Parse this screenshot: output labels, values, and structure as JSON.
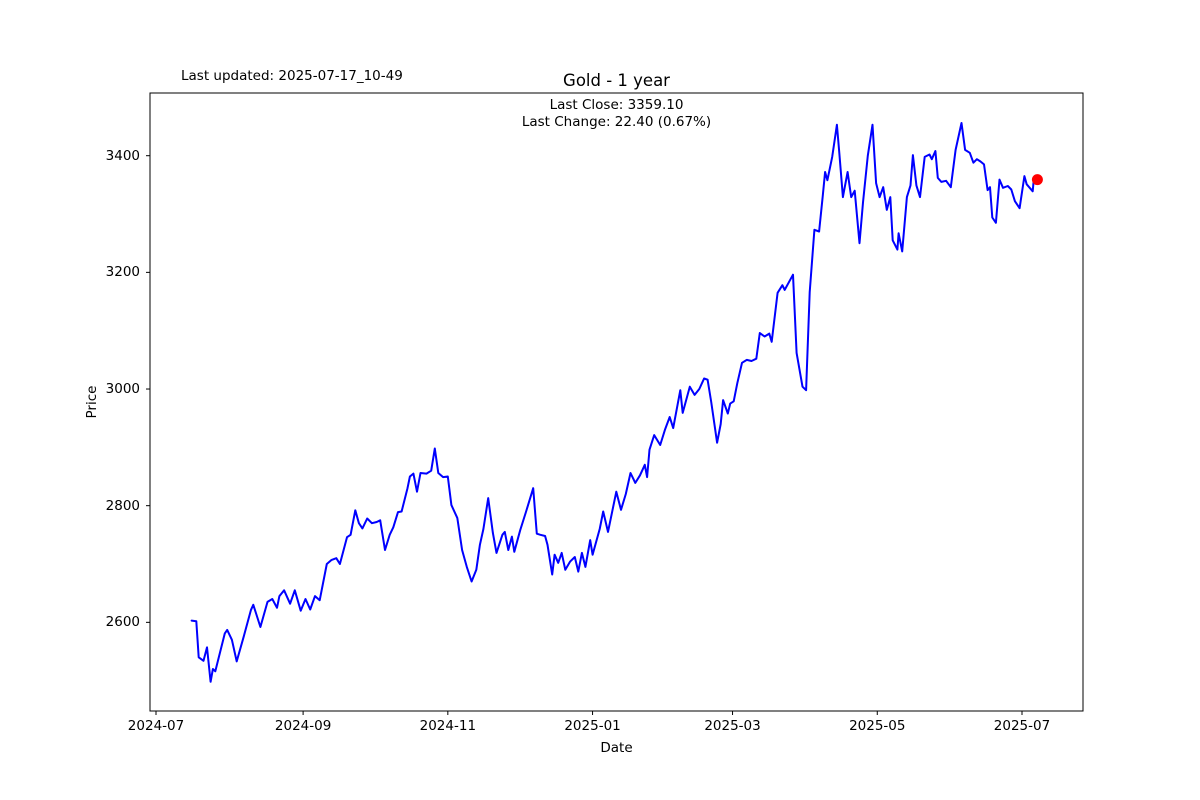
{
  "figure": {
    "last_updated": "Last updated: 2025-07-17_10-49"
  },
  "chart_data": {
    "type": "line",
    "title": "Gold - 1 year",
    "xlabel": "Date",
    "ylabel": "Price",
    "annotations": [
      "Last Close: 3359.10",
      "Last Change: 22.40 (0.67%)"
    ],
    "last_close": 3359.1,
    "last_change": 22.4,
    "last_change_pct": "0.67%",
    "line_color": "#0000ff",
    "last_point_color": "#ff0000",
    "axis_color": "#000000",
    "grid": false,
    "legend": "none",
    "y_ticks": [
      2600,
      2800,
      3000,
      3200,
      3400
    ],
    "ylim": [
      2448,
      3508
    ],
    "x_ticks": [
      {
        "label": "2024-07",
        "day": 0
      },
      {
        "label": "2024-09",
        "day": 62
      },
      {
        "label": "2024-11",
        "day": 123
      },
      {
        "label": "2025-01",
        "day": 184
      },
      {
        "label": "2025-03",
        "day": 243
      },
      {
        "label": "2025-05",
        "day": 304
      },
      {
        "label": "2025-07",
        "day": 365
      }
    ],
    "xlim_days": [
      -2.5,
      390
    ],
    "x_unit": "days since 2024-07-01",
    "series": [
      {
        "name": "Gold price",
        "points": [
          [
            15,
            2603
          ],
          [
            17,
            2602
          ],
          [
            18,
            2540
          ],
          [
            20,
            2534
          ],
          [
            21.5,
            2557
          ],
          [
            23,
            2498
          ],
          [
            24,
            2520
          ],
          [
            25,
            2516
          ],
          [
            29,
            2581
          ],
          [
            30,
            2587
          ],
          [
            32,
            2570
          ],
          [
            34,
            2533
          ],
          [
            37,
            2576
          ],
          [
            40,
            2621
          ],
          [
            41,
            2630
          ],
          [
            44,
            2592
          ],
          [
            47,
            2635
          ],
          [
            49,
            2640
          ],
          [
            51,
            2625
          ],
          [
            52,
            2645
          ],
          [
            54,
            2655
          ],
          [
            56.5,
            2632
          ],
          [
            58.5,
            2655
          ],
          [
            61,
            2620
          ],
          [
            63,
            2640
          ],
          [
            65,
            2622
          ],
          [
            67,
            2645
          ],
          [
            69,
            2638
          ],
          [
            72,
            2700
          ],
          [
            74,
            2707
          ],
          [
            76,
            2710
          ],
          [
            77.5,
            2700
          ],
          [
            80.5,
            2746
          ],
          [
            82,
            2750
          ],
          [
            84,
            2792
          ],
          [
            85.5,
            2770
          ],
          [
            87,
            2761
          ],
          [
            89,
            2778
          ],
          [
            91,
            2770
          ],
          [
            93,
            2772
          ],
          [
            94.5,
            2775
          ],
          [
            96.5,
            2724
          ],
          [
            98.5,
            2750
          ],
          [
            100,
            2763
          ],
          [
            102,
            2789
          ],
          [
            103.5,
            2790
          ],
          [
            106,
            2830
          ],
          [
            107,
            2850
          ],
          [
            108.5,
            2855
          ],
          [
            110,
            2824
          ],
          [
            111.5,
            2856
          ],
          [
            114,
            2855
          ],
          [
            116,
            2860
          ],
          [
            117.5,
            2898
          ],
          [
            119,
            2856
          ],
          [
            121,
            2849
          ],
          [
            123,
            2850
          ],
          [
            124.5,
            2801
          ],
          [
            127,
            2779
          ],
          [
            129,
            2724
          ],
          [
            131,
            2695
          ],
          [
            133,
            2670
          ],
          [
            135,
            2690
          ],
          [
            136.5,
            2733
          ],
          [
            138,
            2760
          ],
          [
            140,
            2813
          ],
          [
            142,
            2753
          ],
          [
            143.5,
            2719
          ],
          [
            146,
            2750
          ],
          [
            147,
            2755
          ],
          [
            148.5,
            2724
          ],
          [
            150,
            2747
          ],
          [
            151,
            2721
          ],
          [
            153.5,
            2758
          ],
          [
            156,
            2790
          ],
          [
            159,
            2830
          ],
          [
            160.5,
            2752
          ],
          [
            162,
            2750
          ],
          [
            164,
            2748
          ],
          [
            165,
            2733
          ],
          [
            167,
            2682
          ],
          [
            168,
            2716
          ],
          [
            169.5,
            2702
          ],
          [
            171,
            2719
          ],
          [
            172.5,
            2690
          ],
          [
            174.5,
            2704
          ],
          [
            176.5,
            2712
          ],
          [
            178,
            2687
          ],
          [
            179.5,
            2719
          ],
          [
            181,
            2695
          ],
          [
            183,
            2741
          ],
          [
            184,
            2716
          ],
          [
            187,
            2760
          ],
          [
            188.5,
            2790
          ],
          [
            190.5,
            2755
          ],
          [
            194,
            2824
          ],
          [
            196,
            2793
          ],
          [
            198,
            2820
          ],
          [
            200,
            2856
          ],
          [
            202,
            2839
          ],
          [
            204,
            2852
          ],
          [
            206,
            2870
          ],
          [
            207,
            2849
          ],
          [
            208,
            2896
          ],
          [
            210,
            2921
          ],
          [
            212.5,
            2904
          ],
          [
            214.5,
            2930
          ],
          [
            216.5,
            2952
          ],
          [
            218,
            2933
          ],
          [
            221,
            2998
          ],
          [
            222,
            2959
          ],
          [
            225,
            3004
          ],
          [
            227,
            2990
          ],
          [
            229,
            3000
          ],
          [
            231,
            3018
          ],
          [
            232.5,
            3016
          ],
          [
            234,
            2978
          ],
          [
            236.5,
            2908
          ],
          [
            238,
            2940
          ],
          [
            239,
            2981
          ],
          [
            241,
            2958
          ],
          [
            242,
            2975
          ],
          [
            243.5,
            2979
          ],
          [
            245,
            3010
          ],
          [
            247,
            3045
          ],
          [
            249,
            3050
          ],
          [
            251,
            3048
          ],
          [
            253,
            3052
          ],
          [
            254.5,
            3096
          ],
          [
            256.5,
            3090
          ],
          [
            258.5,
            3095
          ],
          [
            259.5,
            3081
          ],
          [
            262,
            3165
          ],
          [
            264,
            3178
          ],
          [
            265,
            3170
          ],
          [
            268.5,
            3196
          ],
          [
            270,
            3062
          ],
          [
            272.5,
            3004
          ],
          [
            274,
            2998
          ],
          [
            275.5,
            3166
          ],
          [
            277.5,
            3273
          ],
          [
            279.5,
            3270
          ],
          [
            281,
            3330
          ],
          [
            282,
            3372
          ],
          [
            283,
            3358
          ],
          [
            285,
            3398
          ],
          [
            287,
            3453
          ],
          [
            288,
            3405
          ],
          [
            289.5,
            3329
          ],
          [
            291.5,
            3372
          ],
          [
            293,
            3329
          ],
          [
            294.5,
            3340
          ],
          [
            296.5,
            3250
          ],
          [
            298,
            3320
          ],
          [
            300,
            3400
          ],
          [
            302,
            3453
          ],
          [
            303.5,
            3353
          ],
          [
            305,
            3329
          ],
          [
            306.5,
            3346
          ],
          [
            308,
            3307
          ],
          [
            309.5,
            3329
          ],
          [
            310.5,
            3255
          ],
          [
            312.5,
            3239
          ],
          [
            313,
            3267
          ],
          [
            314.5,
            3236
          ],
          [
            316.5,
            3329
          ],
          [
            318,
            3349
          ],
          [
            319,
            3401
          ],
          [
            320.5,
            3349
          ],
          [
            322,
            3329
          ],
          [
            324,
            3398
          ],
          [
            326,
            3402
          ],
          [
            327,
            3394
          ],
          [
            328.5,
            3408
          ],
          [
            329.5,
            3362
          ],
          [
            331,
            3355
          ],
          [
            333,
            3357
          ],
          [
            335,
            3346
          ],
          [
            337,
            3410
          ],
          [
            339.5,
            3456
          ],
          [
            341,
            3410
          ],
          [
            343,
            3405
          ],
          [
            344.5,
            3388
          ],
          [
            346,
            3394
          ],
          [
            347.5,
            3390
          ],
          [
            349,
            3385
          ],
          [
            350.5,
            3341
          ],
          [
            351.5,
            3346
          ],
          [
            352.5,
            3294
          ],
          [
            354,
            3285
          ],
          [
            355.5,
            3359
          ],
          [
            357,
            3345
          ],
          [
            359,
            3348
          ],
          [
            360.5,
            3342
          ],
          [
            362,
            3322
          ],
          [
            364,
            3310
          ],
          [
            366,
            3365
          ],
          [
            367,
            3351
          ],
          [
            369.5,
            3339
          ],
          [
            370,
            3362
          ],
          [
            371.5,
            3359.1
          ]
        ]
      }
    ]
  }
}
